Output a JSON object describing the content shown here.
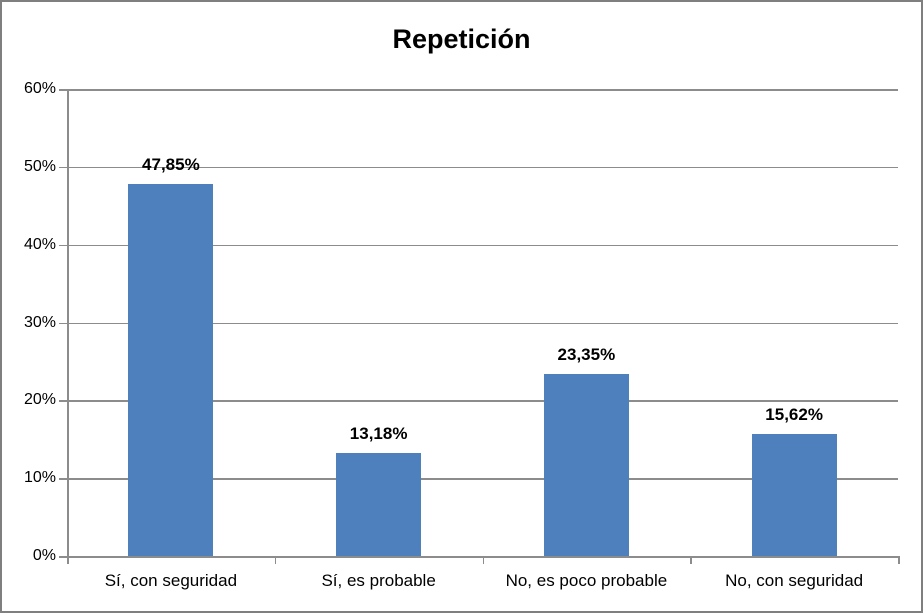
{
  "title": "Repetición",
  "colors": {
    "bar": "#4D80BD",
    "gridline": "#8C8C8C",
    "axis": "#8C8C8C",
    "frame_border": "#7F7F7F",
    "background": "#FFFFFF",
    "text": "#000000"
  },
  "chart_data": {
    "type": "bar",
    "title": "Repetición",
    "categories": [
      "Sí, con seguridad",
      "Sí, es probable",
      "No, es poco probable",
      "No, con seguridad"
    ],
    "values": [
      47.85,
      13.18,
      23.35,
      15.62
    ],
    "value_labels": [
      "47,85%",
      "13,18%",
      "23,35%",
      "15,62%"
    ],
    "xlabel": "",
    "ylabel": "",
    "ylim": [
      0,
      60
    ],
    "y_tick_step": 10,
    "y_tick_labels": [
      "0%",
      "10%",
      "20%",
      "30%",
      "40%",
      "50%",
      "60%"
    ],
    "grid": true,
    "legend_position": "none"
  }
}
